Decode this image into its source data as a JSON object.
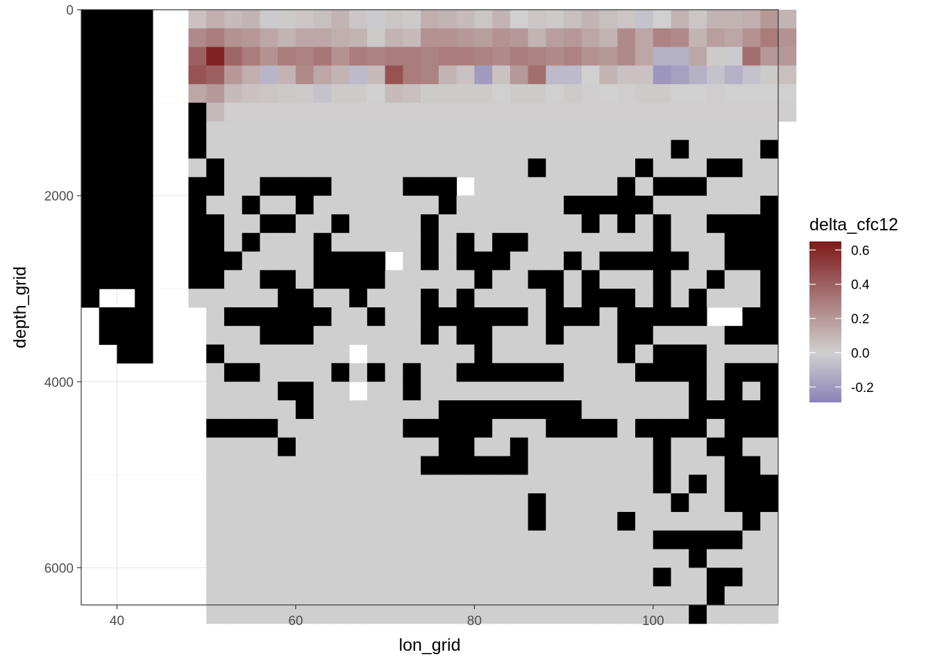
{
  "chart_data": {
    "type": "heatmap",
    "title": "",
    "xlabel": "lon_grid",
    "ylabel": "depth_grid",
    "x_ticks": [
      40,
      60,
      80,
      100
    ],
    "y_ticks": [
      0,
      2000,
      4000,
      6000
    ],
    "xlim": [
      36,
      114
    ],
    "ylim_reversed": [
      6400,
      0
    ],
    "cell_width": 2,
    "cell_height": 200,
    "x_start": 49,
    "x_end": 113,
    "grid": true,
    "background": "#ffffff",
    "missing_color": "#000000",
    "legend": {
      "title": "delta_cfc12",
      "placement": "right",
      "breaks": [
        0.6,
        0.4,
        0.2,
        0.0,
        -0.2
      ],
      "break_labels": [
        "0.6",
        "0.4",
        "0.2",
        "0.0",
        "-0.2"
      ],
      "range": [
        -0.29,
        0.65
      ],
      "colors": {
        "low": "#8c82b8",
        "mid": "#d0d0d0",
        "high": "#7d1a1a"
      }
    },
    "land_columns_lon_35_45": {
      "description_free": true,
      "bands": [
        {
          "lon_from": 36,
          "lon_to": 44,
          "depth_from": 0,
          "depth_to": 3000,
          "filled": true
        },
        {
          "lon_from": 36,
          "lon_to": 38,
          "depth_from": 3000,
          "depth_to": 3200,
          "filled": true
        },
        {
          "lon_from": 42,
          "lon_to": 44,
          "depth_from": 3000,
          "depth_to": 3200,
          "filled": true
        },
        {
          "lon_from": 38,
          "lon_to": 44,
          "depth_from": 3200,
          "depth_to": 3600,
          "filled": true
        },
        {
          "lon_from": 40,
          "lon_to": 44,
          "depth_from": 3600,
          "depth_to": 3800,
          "filled": true
        }
      ]
    },
    "surface_values": [
      [
        0.05,
        0.12,
        0.08,
        0.1,
        -0.02,
        0.02,
        0.04,
        0.06,
        0.1,
        0.04,
        -0.02,
        0.04,
        0.02,
        0.12,
        0.1,
        0.08,
        0.04,
        0.1,
        0.0,
        0.04,
        0.02,
        0.06,
        0.1,
        0.06,
        0.04,
        -0.05,
        0.0,
        0.1,
        0.04,
        0.1,
        0.1,
        0.12,
        0.2,
        0.1
      ],
      [
        0.25,
        0.3,
        0.22,
        0.2,
        0.15,
        0.1,
        0.15,
        0.15,
        0.12,
        0.1,
        0.02,
        0.1,
        0.08,
        0.22,
        0.22,
        0.2,
        0.18,
        0.22,
        0.2,
        0.1,
        0.18,
        0.2,
        0.15,
        0.1,
        0.25,
        0.15,
        0.28,
        0.25,
        0.1,
        0.18,
        0.15,
        0.22,
        0.3,
        0.22
      ],
      [
        0.4,
        0.62,
        0.38,
        0.3,
        0.22,
        0.3,
        0.28,
        0.32,
        0.22,
        0.3,
        0.28,
        0.3,
        0.3,
        0.28,
        0.3,
        0.3,
        0.28,
        0.25,
        0.3,
        0.28,
        0.25,
        0.28,
        0.22,
        0.2,
        0.25,
        0.15,
        -0.12,
        -0.12,
        0.15,
        0.02,
        -0.02,
        0.35,
        0.2,
        0.2
      ],
      [
        0.45,
        0.4,
        0.2,
        0.12,
        -0.1,
        0.1,
        0.25,
        0.15,
        0.1,
        -0.08,
        0.08,
        0.45,
        0.3,
        0.28,
        0.1,
        0.05,
        -0.2,
        0.05,
        0.2,
        0.35,
        -0.08,
        -0.08,
        0.0,
        0.1,
        0.05,
        0.05,
        -0.22,
        -0.18,
        -0.12,
        -0.05,
        -0.12,
        -0.05,
        0.02,
        0.06
      ],
      [
        0.15,
        0.2,
        0.08,
        0.05,
        0.04,
        0.03,
        0.02,
        -0.05,
        0.02,
        0.02,
        0.0,
        0.08,
        0.06,
        0.02,
        0.02,
        0.02,
        0.02,
        0.0,
        0.02,
        0.02,
        0.0,
        0.02,
        0.01,
        0.0,
        0.01,
        0.02,
        0.02,
        0.0,
        0.0,
        0.01,
        0.0,
        0.0,
        0.0,
        0.0
      ],
      [
        null,
        0.08,
        0.01,
        0.01,
        0.01,
        0.01,
        0.01,
        0.01,
        0.01,
        0.01,
        0.01,
        0.01,
        0.01,
        0.01,
        0.01,
        0.01,
        0.01,
        0.01,
        0.01,
        0.01,
        0.01,
        0.01,
        0.01,
        0.01,
        0.01,
        0.01,
        0.01,
        0.01,
        0.01,
        0.01,
        0.01,
        0.01,
        0.01,
        0.01
      ]
    ],
    "deep_rows": [
      "XDDDDDDDDDDDDDDDDDDDDDDDDDDDDDDDD",
      "XDDDDDDDDDDDDDDDDDDDDDDDDDDXDDDDXD",
      "DXDDDDDDDDDDDDDDDDDXDDDDDXDDDXXDDD",
      "XXDDXXXXDDDDXXX.DDDDDDDDXDXXXDDDDX",
      "XDDXDDXDDDDDDDXDDDDDDXXXXXDDDDDDXX",
      "XXDDXXDDXDDDDXDDDDDDDDXDXDXDDXXXXD",
      "XXDXDDDXDDDDDXDXDXXDDDDDDDXDDDXXXX",
      "XXXDDDDXXXX.DXDXXXDDDXDXXXXXDDXXXX",
      "XXDDXXDXXXXDDDDDXDDXXDXDDDXDDXDDXX",
      "DDDDDXXDDXDDDXDXDDDDXDXXXDXDXDDDXX",
      ".DXXXXXXDDXDDXXXXXXDXXXDXXXXX..XX.X",
      ".DDDXXXDDDDDDXDXXDDDXDDDXXDDDDXXXX",
      ".XDDDDDDD.DDDDDDXDDDDDDDXDXXXDDDDD",
      ".DXXDDDDXDXDXDDXXXXXXDDDDXXXXDXXXXD",
      ".DDDDXXDD.DDXDDDDDDDDDDDDDDDXDXDXDX",
      ".DDDDDXDDDDDDDXXXXXXXXDDDDDDXXXXXXX",
      ".XXXXDDDDDDDXXXXXDDDXXXXDXXXXDXXXXX",
      ".DDDDXDDDDDDDDXXDDXDDDDDDDXDDXXDDD",
      ".DDDDDDDDDDDDXXXXXXDDDDDDDXDDDXXDD",
      ".DDDDDDDDDDDDDDDDDDDDDDDDDXDXDXXXXX",
      ".DDDDDDDDDDDDDDDDDDXDDDDDDDXDDXXXDD",
      ".DDDDDDDDDDDDDDDDDDXDDDDXDDDDDDXDDD",
      ".DDDDDDDDDDDDDDDDDDDDDDDDDXXXXXDDDD",
      ".DDDDDDDDDDDDDDDDDDDDDDDDDDDXDDDD",
      ".DDDDDDDDDDDDDDDDDDDDDDDDDXDDXXDD",
      ".DDDDDDDDDDDDDDDDDDDDDDDDDDDDXDDD",
      ".DDDDDDDDDDDDDDDDDDDDDDDDDDDXDDDD"
    ]
  }
}
